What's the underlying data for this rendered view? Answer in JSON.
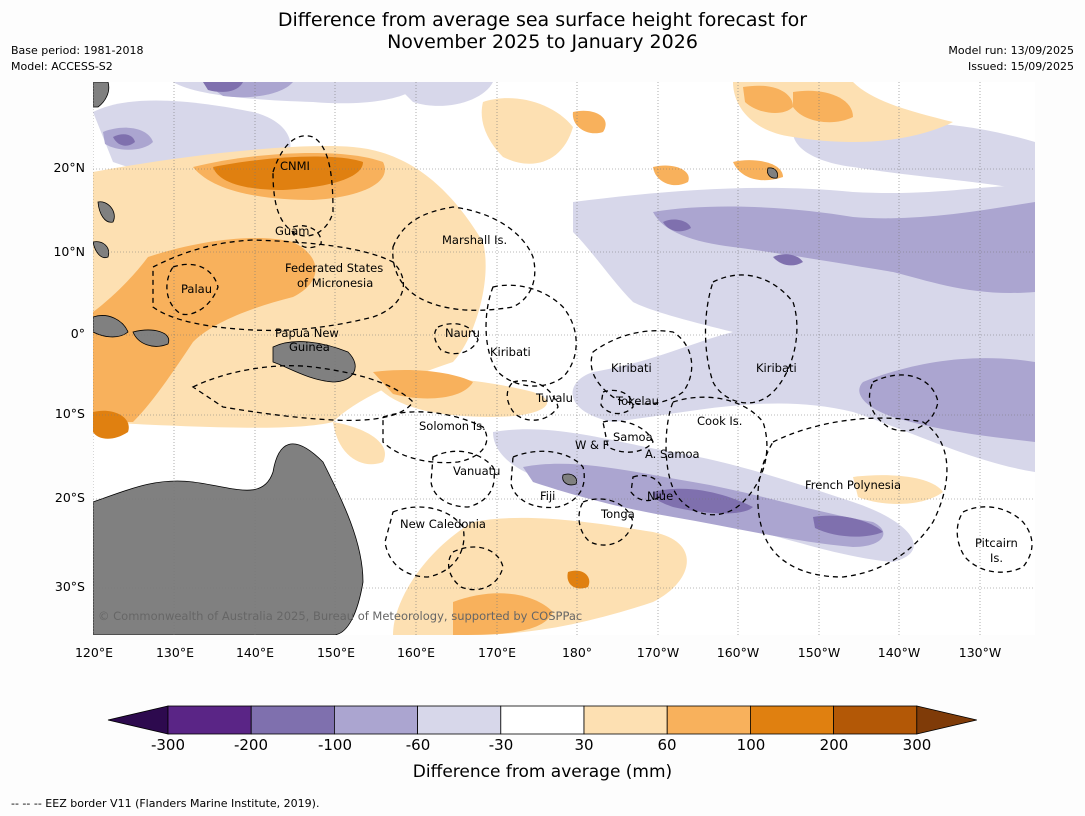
{
  "title_line1": "Difference from average sea surface height forecast for",
  "title_line2": "November 2025 to January 2026",
  "meta": {
    "base_period": "Base period: 1981-2018",
    "model": "Model: ACCESS-S2",
    "model_run": "Model run: 13/09/2025",
    "issued": "Issued: 15/09/2025"
  },
  "axes": {
    "lat_ticks": [
      "20°N",
      "10°N",
      "0°",
      "10°S",
      "20°S",
      "30°S"
    ],
    "lon_ticks": [
      "120°E",
      "130°E",
      "140°E",
      "150°E",
      "160°E",
      "170°E",
      "180°",
      "170°W",
      "160°W",
      "150°W",
      "140°W",
      "130°W"
    ]
  },
  "regions": {
    "cnmi": "CNMI",
    "guam": "Guam",
    "marshall": "Marshall Is.",
    "fsm1": "Federated States",
    "fsm2": "of Micronesia",
    "palau": "Palau",
    "png1": "Papua New",
    "png2": "Guinea",
    "nauru": "Nauru",
    "kiribati_w": "Kiribati",
    "kiribati_c": "Kiribati",
    "kiribati_e": "Kiribati",
    "tuvalu": "Tuvalu",
    "tokelau": "Tokelau",
    "solomon": "Solomon Is.",
    "samoa": "Samoa",
    "wf": "W & F",
    "asamoa": "A. Samoa",
    "cook": "Cook Is.",
    "vanuatu": "Vanuatu",
    "fiji": "Fiji",
    "niue": "Niue",
    "tonga": "Tonga",
    "frpoly": "French Polynesia",
    "newcal": "New Caledonia",
    "pitcairn1": "Pitcairn",
    "pitcairn2": "Is."
  },
  "copyright": "© Commonwealth of Australia 2025, Bureau of Meteorology, supported by COSPPac",
  "colorbar": {
    "labels": [
      "-300",
      "-200",
      "-100",
      "-60",
      "-30",
      "30",
      "60",
      "100",
      "200",
      "300"
    ],
    "title": "Difference from average (mm)",
    "colors": [
      "#2d0a4e",
      "#5a2586",
      "#7f70ae",
      "#aba5d0",
      "#d7d7ea",
      "#ffffff",
      "#fde0b2",
      "#f8b15c",
      "#e08010",
      "#b35806",
      "#7f3b08"
    ]
  },
  "footer": "--  --  -- EEZ border V11 (Flanders Marine Institute, 2019)."
}
